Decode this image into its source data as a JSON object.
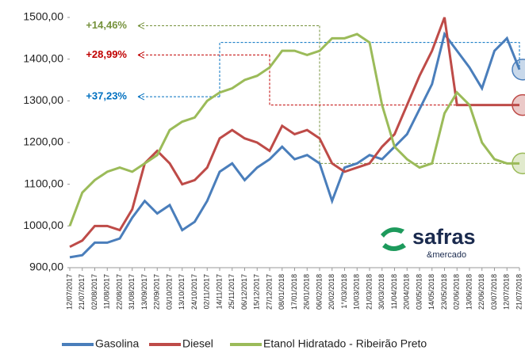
{
  "chart_data": {
    "type": "line",
    "categories": [
      "12/07/2017",
      "21/07/2017",
      "02/08/2017",
      "11/08/2017",
      "22/08/2017",
      "31/08/2017",
      "13/09/2017",
      "22/09/2017",
      "03/10/2017",
      "13/10/2017",
      "24/10/2017",
      "02/11/2017",
      "14/11/2017",
      "25/11/2017",
      "06/12/2017",
      "15/12/2017",
      "27/12/2017",
      "08/01/2018",
      "17/01/2018",
      "26/01/2018",
      "06/02/2018",
      "20/02/2018",
      "1°/03/2018",
      "10/03/2018",
      "21/03/2018",
      "30/03/2018",
      "11/04/2018",
      "20/04/2018",
      "03/05/2018",
      "14/05/2018",
      "23/05/2018",
      "02/06/2018",
      "13/06/2018",
      "22/06/2018",
      "03/07/2018",
      "12/07/2018",
      "21/07/2018"
    ],
    "series": [
      {
        "name": "Gasolina",
        "color": "#4a7ebb",
        "values": [
          925,
          930,
          960,
          960,
          970,
          1020,
          1060,
          1030,
          1050,
          990,
          1010,
          1060,
          1130,
          1150,
          1110,
          1140,
          1160,
          1190,
          1160,
          1170,
          1150,
          1060,
          1140,
          1150,
          1170,
          1160,
          1190,
          1220,
          1280,
          1340,
          1460,
          1420,
          1380,
          1330,
          1420,
          1450,
          1375
        ]
      },
      {
        "name": "Diesel",
        "color": "#be4b48",
        "values": [
          950,
          965,
          1000,
          1000,
          990,
          1040,
          1150,
          1180,
          1150,
          1100,
          1110,
          1140,
          1210,
          1230,
          1210,
          1200,
          1180,
          1240,
          1220,
          1230,
          1210,
          1150,
          1130,
          1140,
          1150,
          1190,
          1220,
          1290,
          1360,
          1420,
          1500,
          1290,
          1290,
          1290,
          1290,
          1290,
          1290
        ]
      },
      {
        "name": "Etanol Hidratado - Ribeirão Preto",
        "color": "#9bbb59",
        "values": [
          1000,
          1080,
          1110,
          1130,
          1140,
          1130,
          1150,
          1170,
          1230,
          1250,
          1260,
          1300,
          1320,
          1330,
          1350,
          1360,
          1380,
          1420,
          1420,
          1410,
          1420,
          1450,
          1450,
          1460,
          1440,
          1290,
          1190,
          1160,
          1140,
          1150,
          1270,
          1320,
          1290,
          1200,
          1160,
          1150,
          1150
        ]
      }
    ],
    "ylim": [
      900,
      1500
    ],
    "yticks": [
      {
        "value": 900,
        "label": "900,00"
      },
      {
        "value": 1000,
        "label": "1000,00"
      },
      {
        "value": 1100,
        "label": "1100,00"
      },
      {
        "value": 1200,
        "label": "1200,00"
      },
      {
        "value": 1300,
        "label": "1300,00"
      },
      {
        "value": 1400,
        "label": "1400,00"
      },
      {
        "value": 1500,
        "label": "1500,00"
      }
    ],
    "annotations": [
      "+14,46%",
      "+28,99%",
      "+37,23%"
    ],
    "logo": [
      "safras",
      "&mercado"
    ]
  }
}
